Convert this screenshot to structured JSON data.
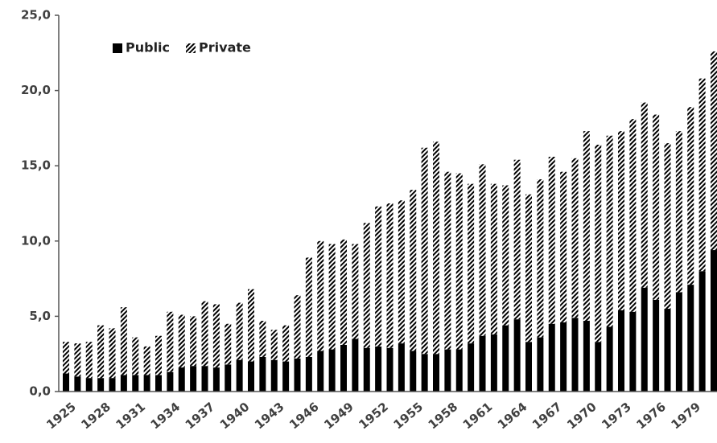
{
  "chart_data": {
    "type": "stacked_bar",
    "categories": [
      "1925",
      null,
      null,
      "1928",
      null,
      null,
      "1931",
      null,
      null,
      "1934",
      null,
      null,
      "1937",
      null,
      null,
      "1940",
      null,
      null,
      "1943",
      null,
      null,
      "1946",
      null,
      null,
      "1949",
      null,
      null,
      "1952",
      null,
      null,
      "1955",
      null,
      null,
      "1958",
      null,
      null,
      "1961",
      null,
      null,
      "1964",
      null,
      null,
      "1967",
      null,
      null,
      "1970",
      null,
      null,
      "1973",
      null,
      null,
      "1976",
      null,
      null,
      "1979",
      null,
      null
    ],
    "series": [
      {
        "name": "Public",
        "color": "#000000",
        "pattern": "solid",
        "values": [
          1.2,
          1.0,
          0.9,
          0.9,
          0.9,
          1.1,
          1.1,
          1.1,
          1.1,
          1.3,
          1.6,
          1.7,
          1.7,
          1.6,
          1.8,
          2.1,
          2.0,
          2.3,
          2.1,
          2.0,
          2.2,
          2.3,
          2.7,
          2.8,
          3.1,
          3.5,
          2.9,
          3.0,
          2.9,
          3.2,
          2.7,
          2.5,
          2.5,
          2.8,
          2.8,
          3.2,
          3.7,
          3.8,
          4.4,
          4.8,
          3.3,
          3.6,
          4.5,
          4.6,
          4.9,
          4.7,
          3.3,
          4.3,
          5.4,
          5.3,
          6.9,
          6.1,
          5.5,
          6.6,
          7.1,
          8.0,
          9.4
        ]
      },
      {
        "name": "Private",
        "color": "#000000",
        "pattern": "hatch",
        "values": [
          2.1,
          2.2,
          2.4,
          3.5,
          3.3,
          4.5,
          2.5,
          1.9,
          2.6,
          4.0,
          3.5,
          3.3,
          4.3,
          4.2,
          2.7,
          3.8,
          4.8,
          2.4,
          2.0,
          2.4,
          4.2,
          6.6,
          7.3,
          7.0,
          7.0,
          6.3,
          8.3,
          9.3,
          9.6,
          9.5,
          10.7,
          13.7,
          14.1,
          11.8,
          11.7,
          10.6,
          11.4,
          10.0,
          9.3,
          10.6,
          9.8,
          10.5,
          11.1,
          10.0,
          10.6,
          12.6,
          13.1,
          12.7,
          11.9,
          12.8,
          12.3,
          12.3,
          11.0,
          10.7,
          11.8,
          12.8,
          13.2
        ]
      }
    ],
    "ylim": [
      0,
      25
    ],
    "yticks": [
      {
        "value": 0,
        "label": "0,0"
      },
      {
        "value": 5,
        "label": "5,0"
      },
      {
        "value": 10,
        "label": "10,0"
      },
      {
        "value": 15,
        "label": "15,0"
      },
      {
        "value": 20,
        "label": "20,0"
      },
      {
        "value": 25,
        "label": "25,0"
      }
    ],
    "legend": "upper left"
  }
}
